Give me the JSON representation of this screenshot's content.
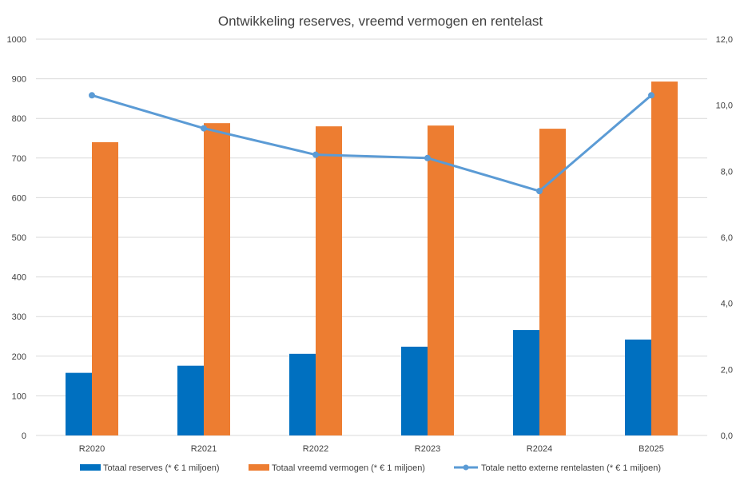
{
  "chart_data": {
    "type": "bar",
    "title": "Ontwikkeling reserves, vreemd vermogen en rentelast",
    "categories": [
      "R2020",
      "R2021",
      "R2022",
      "R2023",
      "R2024",
      "B2025"
    ],
    "y_left": {
      "min": 0,
      "max": 1000,
      "step": 100,
      "ticks": [
        "0",
        "100",
        "200",
        "300",
        "400",
        "500",
        "600",
        "700",
        "800",
        "900",
        "1000"
      ]
    },
    "y_right": {
      "min": 0,
      "max": 12,
      "step": 2,
      "ticks": [
        "0,0",
        "2,0",
        "4,0",
        "6,0",
        "8,0",
        "10,0",
        "12,0"
      ]
    },
    "grid": true,
    "legend_position": "bottom",
    "series": [
      {
        "name": "Totaal reserves (* € 1 miljoen)",
        "type": "bar",
        "axis": "left",
        "color": "#0070C0",
        "values": [
          158,
          176,
          206,
          224,
          266,
          242
        ]
      },
      {
        "name": "Totaal vreemd vermogen (* € 1 miljoen)",
        "type": "bar",
        "axis": "left",
        "color": "#ED7D31",
        "values": [
          740,
          788,
          780,
          782,
          774,
          893
        ]
      },
      {
        "name": "Totale netto externe rentelasten (* € 1 miljoen)",
        "type": "line",
        "axis": "right",
        "color": "#5B9BD5",
        "values": [
          10.3,
          9.3,
          8.5,
          8.4,
          7.4,
          10.3
        ]
      }
    ]
  }
}
